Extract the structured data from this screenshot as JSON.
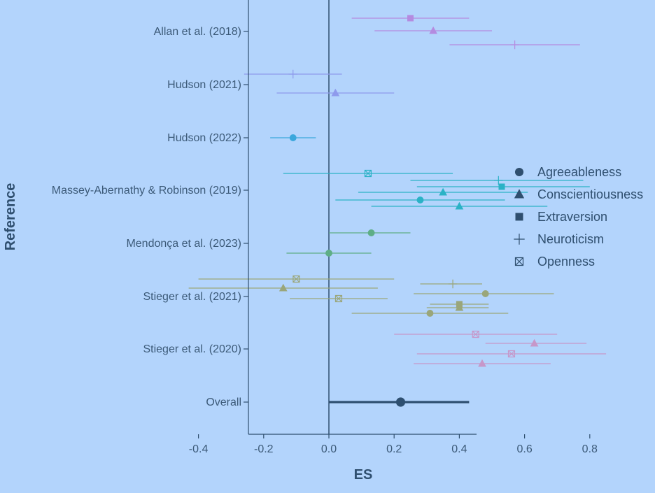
{
  "chart_data": {
    "type": "forest",
    "xlabel": "ES",
    "ylabel": "Reference",
    "xlim": [
      -0.5,
      0.9
    ],
    "xticks": [
      -0.4,
      -0.2,
      0.0,
      0.2,
      0.4,
      0.6,
      0.8
    ],
    "xtick_labels": [
      "-0.4",
      "-0.2",
      "0.0",
      "0.2",
      "0.4",
      "0.6",
      "0.8"
    ],
    "reference_line_x": 0,
    "legend_placement": "right",
    "legend": [
      {
        "label": "Agreeableness",
        "shape": "circle"
      },
      {
        "label": "Conscientiousness",
        "shape": "triangle"
      },
      {
        "label": "Extraversion",
        "shape": "square"
      },
      {
        "label": "Neuroticism",
        "shape": "plus"
      },
      {
        "label": "Openness",
        "shape": "boxx"
      }
    ],
    "references": [
      {
        "label": "Allan et al. (2018)",
        "color": "#b48be0",
        "estimates": [
          {
            "trait": "Extraversion",
            "es": 0.25,
            "lo": 0.07,
            "hi": 0.43
          },
          {
            "trait": "Conscientiousness",
            "es": 0.32,
            "lo": 0.14,
            "hi": 0.5
          },
          {
            "trait": "Neuroticism",
            "es": 0.57,
            "lo": 0.37,
            "hi": 0.77
          }
        ]
      },
      {
        "label": "Hudson (2021)",
        "color": "#8e9aec",
        "estimates": [
          {
            "trait": "Neuroticism",
            "es": -0.11,
            "lo": -0.26,
            "hi": 0.04
          },
          {
            "trait": "Conscientiousness",
            "es": 0.02,
            "lo": -0.16,
            "hi": 0.2
          }
        ]
      },
      {
        "label": "Hudson (2022)",
        "color": "#3aa7dc",
        "estimates": [
          {
            "trait": "Agreeableness",
            "es": -0.11,
            "lo": -0.18,
            "hi": -0.04
          }
        ]
      },
      {
        "label": "Massey-Abernathy & Robinson (2019)",
        "color": "#2bb2c6",
        "estimates": [
          {
            "trait": "Openness",
            "es": 0.12,
            "lo": -0.14,
            "hi": 0.38
          },
          {
            "trait": "Neuroticism",
            "es": 0.52,
            "lo": 0.25,
            "hi": 0.78
          },
          {
            "trait": "Extraversion",
            "es": 0.53,
            "lo": 0.27,
            "hi": 0.8
          },
          {
            "trait": "Conscientiousness",
            "es": 0.35,
            "lo": 0.09,
            "hi": 0.61
          },
          {
            "trait": "Agreeableness",
            "es": 0.28,
            "lo": 0.02,
            "hi": 0.54
          },
          {
            "trait": "Conscientiousness",
            "es": 0.4,
            "lo": 0.13,
            "hi": 0.67
          }
        ]
      },
      {
        "label": "Mendonça et al. (2023)",
        "color": "#5eae86",
        "estimates": [
          {
            "trait": "Agreeableness",
            "es": 0.13,
            "lo": 0.0,
            "hi": 0.25
          },
          {
            "trait": "Agreeableness",
            "es": 0.0,
            "lo": -0.13,
            "hi": 0.13
          }
        ]
      },
      {
        "label": "Stieger et al. (2021)",
        "color": "#9aa67a",
        "estimates": [
          {
            "trait": "Openness",
            "es": -0.1,
            "lo": -0.4,
            "hi": 0.2
          },
          {
            "trait": "Neuroticism",
            "es": 0.38,
            "lo": 0.28,
            "hi": 0.47
          },
          {
            "trait": "Conscientiousness",
            "es": -0.14,
            "lo": -0.43,
            "hi": 0.15
          },
          {
            "trait": "Agreeableness",
            "es": 0.48,
            "lo": 0.26,
            "hi": 0.69
          },
          {
            "trait": "Openness",
            "es": 0.03,
            "lo": -0.12,
            "hi": 0.18
          },
          {
            "trait": "Extraversion",
            "es": 0.4,
            "lo": 0.31,
            "hi": 0.49
          },
          {
            "trait": "Conscientiousness",
            "es": 0.4,
            "lo": 0.3,
            "hi": 0.49
          },
          {
            "trait": "Agreeableness",
            "es": 0.31,
            "lo": 0.07,
            "hi": 0.55
          }
        ]
      },
      {
        "label": "Stieger et al. (2020)",
        "color": "#c697c9",
        "estimates": [
          {
            "trait": "Openness",
            "es": 0.45,
            "lo": 0.2,
            "hi": 0.7
          },
          {
            "trait": "Conscientiousness",
            "es": 0.63,
            "lo": 0.48,
            "hi": 0.79
          },
          {
            "trait": "Openness",
            "es": 0.56,
            "lo": 0.27,
            "hi": 0.85
          },
          {
            "trait": "Conscientiousness",
            "es": 0.47,
            "lo": 0.26,
            "hi": 0.68
          }
        ]
      },
      {
        "label": "Overall",
        "color": "#2e4f70",
        "estimates": [
          {
            "trait": "Overall",
            "es": 0.22,
            "lo": 0.0,
            "hi": 0.43
          }
        ]
      }
    ]
  },
  "colors": {
    "background": "#b3d4fc",
    "axis": "#2f4f6f",
    "text": "#3c5a78",
    "legend_marker": "#2f4f6f"
  }
}
